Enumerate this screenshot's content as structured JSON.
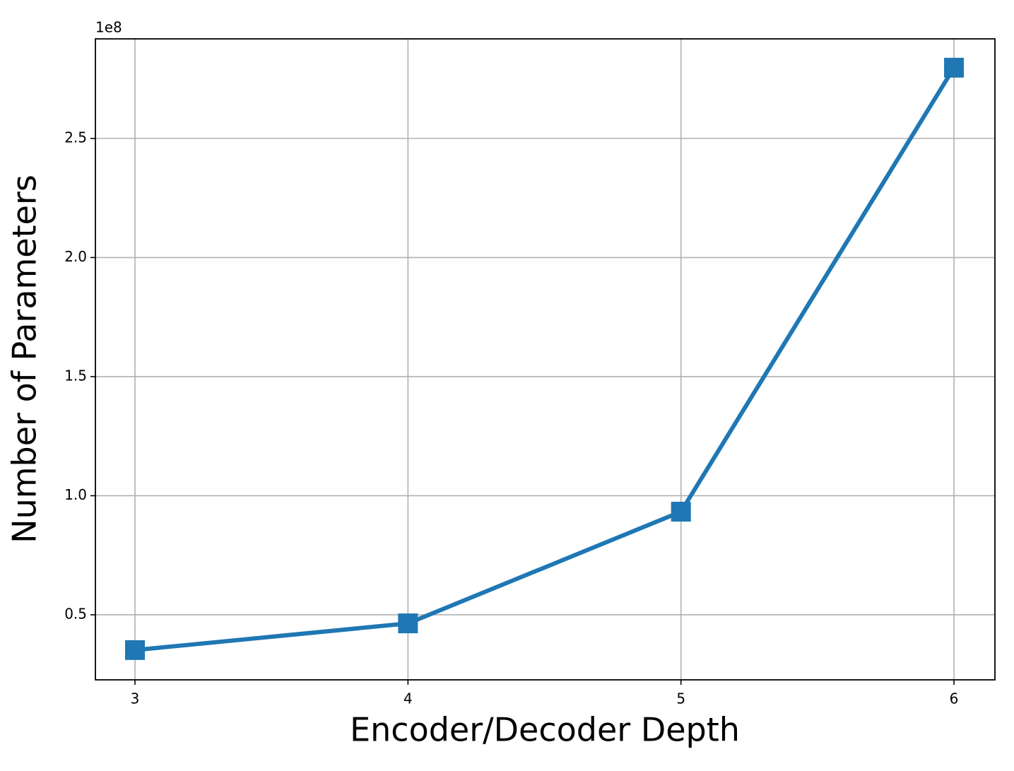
{
  "chart_data": {
    "type": "line",
    "x": [
      3,
      4,
      5,
      6
    ],
    "series": [
      {
        "color": "#1f77b4",
        "marker": "square",
        "values": [
          0.352,
          0.464,
          0.933,
          2.797
        ]
      }
    ],
    "xlabel": "Encoder/Decoder Depth",
    "ylabel": "Number of Parameters",
    "y_offset_label": "1e8",
    "xlim": [
      2.855,
      6.15
    ],
    "ylim": [
      0.227,
      2.918
    ],
    "xticks": [
      3,
      4,
      5,
      6
    ],
    "yticks": [
      0.5,
      {
        "value": 1,
        "label": "1.0"
      },
      1.5,
      {
        "value": 2,
        "label": "2.0"
      },
      2.5
    ],
    "grid": true
  }
}
